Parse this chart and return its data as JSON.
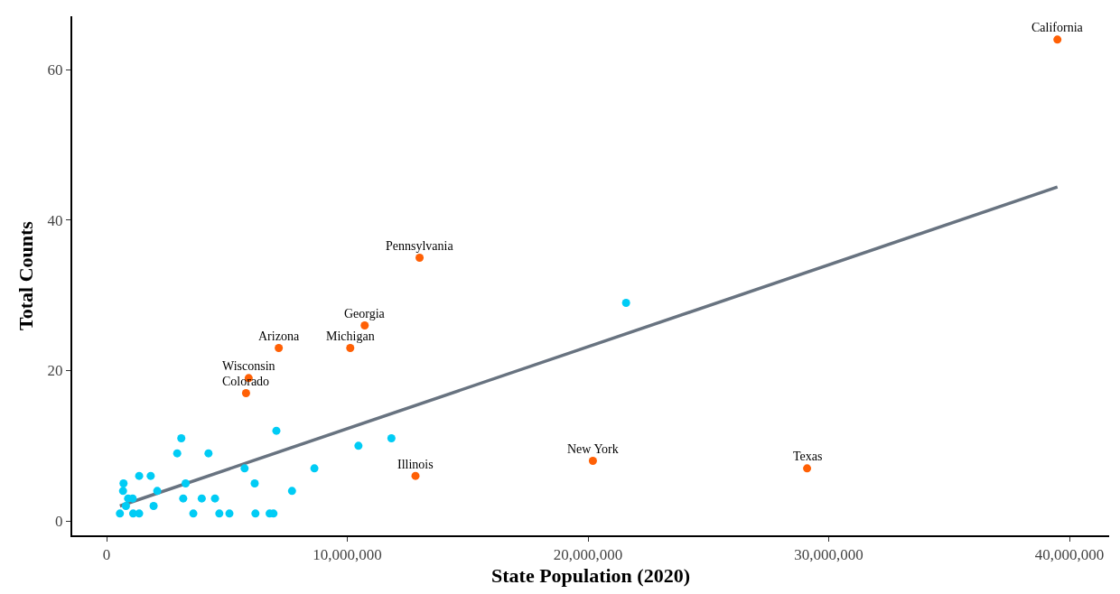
{
  "chart_data": {
    "type": "scatter",
    "xlabel": "State Population (2020)",
    "ylabel": "Total Counts",
    "xlim": [
      -1430000,
      41650000
    ],
    "ylim": [
      -1.9,
      67.1
    ],
    "xticks": [
      {
        "value": 0,
        "label": "0"
      },
      {
        "value": 10000000,
        "label": "10,000,000"
      },
      {
        "value": 20000000,
        "label": "20,000,000"
      },
      {
        "value": 30000000,
        "label": "30,000,000"
      },
      {
        "value": 40000000,
        "label": "40,000,000"
      }
    ],
    "yticks": [
      0,
      20,
      40,
      60
    ],
    "marker": "circle",
    "series": [
      {
        "type": "line",
        "marker": "none",
        "color": "#687380",
        "x": [
          550000,
          39500000
        ],
        "values": [
          2.0,
          44.4
        ]
      },
      {
        "color": "#00ccf5",
        "x": [
          550000,
          700000,
          680000,
          800000,
          890000,
          1080000,
          1100000,
          1350000,
          1350000,
          1830000,
          2100000,
          1950000,
          2930000,
          3100000,
          3280000,
          3180000,
          3600000,
          3950000,
          4230000,
          4500000,
          4680000,
          5100000,
          5730000,
          6150000,
          6180000,
          6770000,
          6930000,
          7050000,
          7700000,
          8630000,
          10460000,
          11830000,
          21580000
        ],
        "values": [
          1,
          5,
          4,
          2,
          3,
          3,
          1,
          1,
          6,
          6,
          4,
          2,
          9,
          11,
          5,
          3,
          1,
          3,
          9,
          3,
          1,
          1,
          7,
          5,
          1,
          1,
          1,
          12,
          4,
          7,
          10,
          11,
          29
        ]
      },
      {
        "color": "#ff6005",
        "x": [
          39500000,
          29100000,
          20200000,
          13000000,
          10720000,
          10120000,
          7150000,
          5900000,
          5790000,
          12830000
        ],
        "values": [
          64,
          7,
          8,
          35,
          26,
          23,
          23,
          19,
          17,
          6
        ]
      }
    ],
    "annotations": [
      {
        "text": "California",
        "x": 39500000,
        "y": 64
      },
      {
        "text": "Texas",
        "x": 29100000,
        "y": 7
      },
      {
        "text": "New York",
        "x": 20200000,
        "y": 8
      },
      {
        "text": "Pennsylvania",
        "x": 13000000,
        "y": 35
      },
      {
        "text": "Georgia",
        "x": 10720000,
        "y": 26
      },
      {
        "text": "Michigan",
        "x": 10120000,
        "y": 23
      },
      {
        "text": "Arizona",
        "x": 7150000,
        "y": 23
      },
      {
        "text": "Wisconsin",
        "x": 5900000,
        "y": 19
      },
      {
        "text": "Colorado",
        "x": 5790000,
        "y": 17
      },
      {
        "text": "Illinois",
        "x": 12830000,
        "y": 6
      }
    ]
  }
}
